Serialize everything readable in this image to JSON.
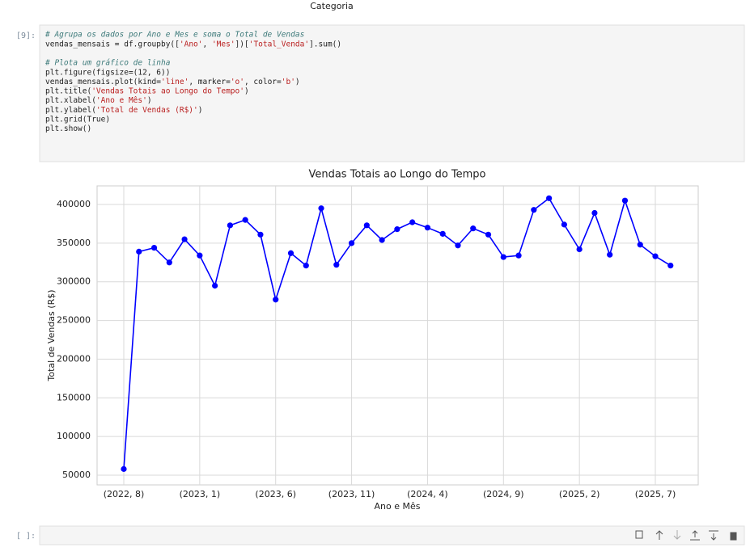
{
  "header": {
    "text": "Categoria"
  },
  "cells": [
    {
      "prompt": "[9]:",
      "code": [
        "# Agrupa os dados por Ano e Mes e soma o Total de Vendas",
        "vendas_mensais = df.groupby(['Ano', 'Mes'])['Total_Venda'].sum()",
        "# Plota um gráfico de linha",
        "plt.figure(figsize=(12, 6))",
        "vendas_mensais.plot(kind='line', marker='o', color='b')",
        "plt.title('Vendas Totais ao Longo do Tempo')",
        "plt.xlabel('Ano e Mês')",
        "plt.ylabel('Total de Vendas (R$)')",
        "plt.grid(True)",
        "plt.show()"
      ]
    },
    {
      "prompt": "[ ]:"
    }
  ],
  "chart_data": {
    "type": "line",
    "title": "Vendas Totais ao Longo do Tempo",
    "x_label": "Ano e Mês",
    "y_label": "Total de Vendas (R$)",
    "categories": [
      "(2022, 8)",
      null,
      null,
      null,
      null,
      "(2023, 1)",
      null,
      null,
      null,
      null,
      "(2023, 6)",
      null,
      null,
      null,
      null,
      "(2023, 11)",
      null,
      null,
      null,
      null,
      "(2024, 4)",
      null,
      null,
      null,
      null,
      "(2024, 9)",
      null,
      null,
      null,
      null,
      "(2025, 2)",
      null,
      null,
      null,
      null,
      "(2025, 7)",
      null
    ],
    "series": [
      {
        "name": "Total_Venda",
        "color": "#0000ff",
        "values": [
          58000,
          339000,
          344000,
          325000,
          355000,
          334000,
          295000,
          373000,
          380000,
          361000,
          277000,
          337000,
          321000,
          395000,
          322000,
          350000,
          373000,
          354000,
          368000,
          377000,
          370000,
          362000,
          347000,
          369000,
          361000,
          332000,
          334000,
          393000,
          408000,
          374000,
          342000,
          389000,
          335000,
          405000,
          348000,
          333000,
          321000
        ]
      }
    ],
    "ylim": [
      37500,
      424000
    ],
    "yticks": [
      50000,
      100000,
      150000,
      200000,
      250000,
      300000,
      350000,
      400000
    ],
    "grid": true
  }
}
